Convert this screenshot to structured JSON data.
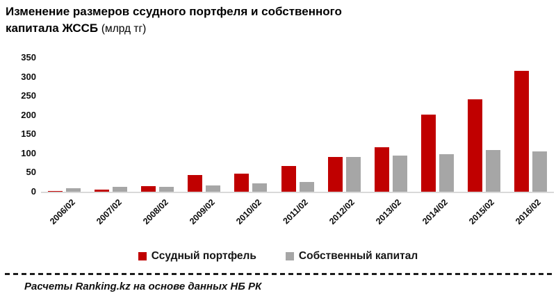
{
  "title": {
    "line1": "Изменение размеров ссудного портфеля и собственного",
    "line2_bold": "капитала  ЖССБ",
    "line2_unit": "(млрд тг)"
  },
  "chart_data": {
    "type": "bar",
    "title": "Изменение размеров ссудного портфеля и собственного капитала ЖССБ (млрд тг)",
    "categories": [
      "2006/02",
      "2007/02",
      "2008/02",
      "2009/02",
      "2010/02",
      "2011/02",
      "2012/02",
      "2013/02",
      "2014/02",
      "2015/02",
      "2016/02"
    ],
    "series": [
      {
        "name": "Ссудный портфель",
        "color": "#c00000",
        "values": [
          1,
          5,
          15,
          43,
          47,
          68,
          90,
          117,
          201,
          242,
          315
        ]
      },
      {
        "name": "Собственный капитал",
        "color": "#a6a6a6",
        "values": [
          10,
          12,
          13,
          16,
          21,
          25,
          90,
          94,
          98,
          109,
          106
        ]
      }
    ],
    "xlabel": "",
    "ylabel": "",
    "ylim": [
      0,
      350
    ],
    "yticks": [
      0,
      50,
      100,
      150,
      200,
      250,
      300,
      350
    ],
    "grid": false,
    "legend_position": "bottom",
    "axis_line_color": "#d9d9d9"
  },
  "footer": {
    "source": "Расчеты Ranking.kz на основе данных  НБ РК"
  }
}
